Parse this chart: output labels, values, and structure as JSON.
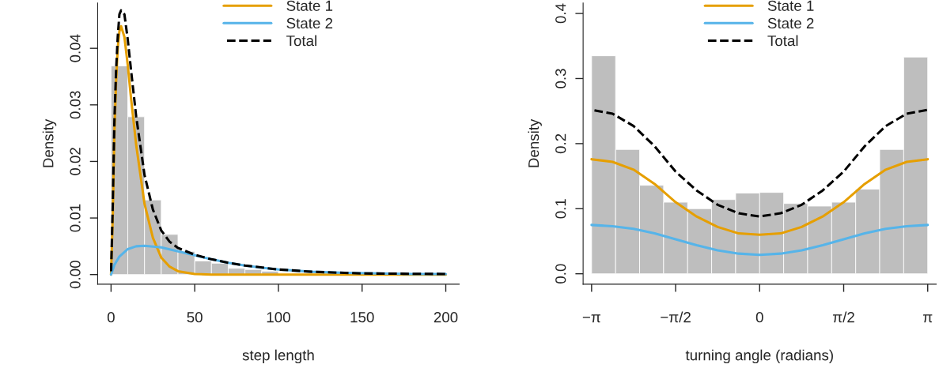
{
  "chart_data": [
    {
      "type": "histogram",
      "xlabel": "step length",
      "ylabel": "Density",
      "color": "#bebebe",
      "bins": [
        0,
        10,
        20,
        30,
        40,
        50,
        60,
        70,
        80,
        90,
        100,
        110,
        120,
        130,
        140,
        150,
        160,
        170,
        180,
        190,
        200
      ],
      "values": [
        0.0369,
        0.0279,
        0.0132,
        0.0071,
        0.0041,
        0.0024,
        0.002,
        0.0011,
        0.0009,
        0.0006,
        null,
        null,
        null,
        null,
        null,
        null,
        null,
        null,
        null,
        null
      ],
      "xlim": [
        -8,
        208
      ],
      "ylim": [
        -0.0017,
        0.048
      ],
      "xticks": [
        0,
        50,
        100,
        150,
        200
      ],
      "yticks": [
        {
          "value": 0,
          "label": "0.00"
        },
        {
          "value": 0.01,
          "label": "0.01"
        },
        {
          "value": 0.02,
          "label": "0.02"
        },
        {
          "value": 0.03,
          "label": "0.03"
        },
        {
          "value": 0.04,
          "label": "0.04"
        }
      ],
      "legend": "top",
      "grid": false,
      "series": [
        {
          "type": "line",
          "name": "State 1",
          "color": "#e69f00",
          "line_style": "solid",
          "x": [
            0,
            1,
            2,
            3,
            4,
            5,
            6,
            8,
            10,
            12,
            15,
            20,
            25,
            30,
            35,
            40,
            50,
            60,
            80,
            120,
            200
          ],
          "values": [
            0,
            0.01,
            0.025,
            0.034,
            0.04,
            0.043,
            0.0439,
            0.042,
            0.037,
            0.031,
            0.023,
            0.0125,
            0.0065,
            0.003,
            0.0014,
            0.0006,
            0.0001,
            0,
            0,
            0,
            0
          ]
        },
        {
          "type": "line",
          "name": "State 2",
          "color": "#56b4e9",
          "line_style": "solid",
          "x": [
            0,
            2,
            5,
            10,
            15,
            20,
            30,
            40,
            50,
            60,
            70,
            80,
            90,
            100,
            120,
            140,
            160,
            180,
            200
          ],
          "values": [
            0,
            0.0017,
            0.0032,
            0.0045,
            0.005,
            0.0051,
            0.0048,
            0.0041,
            0.0034,
            0.0027,
            0.0021,
            0.0016,
            0.0012,
            0.0009,
            0.0005,
            0.0003,
            0.0002,
            0.0001,
            0.0001
          ]
        },
        {
          "type": "line",
          "name": "Total",
          "color": "#000000",
          "line_style": "dashed",
          "x": [
            0,
            1,
            2,
            3,
            4,
            5,
            6,
            8,
            10,
            12,
            15,
            20,
            25,
            30,
            35,
            40,
            50,
            60,
            70,
            80,
            100,
            120,
            150,
            200
          ],
          "values": [
            0,
            0.012,
            0.027,
            0.036,
            0.042,
            0.046,
            0.0467,
            0.046,
            0.0415,
            0.036,
            0.028,
            0.0176,
            0.0115,
            0.0078,
            0.0058,
            0.0047,
            0.0035,
            0.0027,
            0.0021,
            0.0016,
            0.0009,
            0.0005,
            0.0002,
            0.0001
          ]
        }
      ]
    },
    {
      "type": "histogram",
      "xlabel": "turning angle (radians)",
      "ylabel": "Density",
      "color": "#bebebe",
      "bins": [
        -3.1416,
        -2.6928,
        -2.244,
        -1.7952,
        -1.3464,
        -0.8976,
        -0.4488,
        0,
        0.4488,
        0.8976,
        1.3464,
        1.7952,
        2.244,
        2.6928,
        3.1416
      ],
      "values": [
        0.335,
        0.191,
        0.136,
        0.11,
        0.1,
        0.114,
        0.124,
        0.125,
        0.108,
        0.104,
        0.11,
        0.13,
        0.191,
        0.333
      ],
      "xlim": [
        -3.3,
        3.3
      ],
      "ylim": [
        -0.016,
        0.416
      ],
      "xticks": [
        {
          "value": -3.1416,
          "label": "−π"
        },
        {
          "value": -1.5708,
          "label": "−π/2"
        },
        0,
        {
          "value": 1.5708,
          "label": "π/2"
        },
        {
          "value": 3.1416,
          "label": "π"
        }
      ],
      "yticks": [
        {
          "value": 0,
          "label": "0.0"
        },
        {
          "value": 0.1,
          "label": "0.1"
        },
        {
          "value": 0.2,
          "label": "0.2"
        },
        {
          "value": 0.3,
          "label": "0.3"
        },
        {
          "value": 0.4,
          "label": "0.4"
        }
      ],
      "legend": "top",
      "grid": false,
      "series": [
        {
          "type": "line",
          "name": "State 1",
          "color": "#e69f00",
          "line_style": "solid",
          "x": [
            -3.1416,
            -2.7489,
            -2.3562,
            -1.9635,
            -1.5708,
            -1.1781,
            -0.7854,
            -0.3927,
            0,
            0.3927,
            0.7854,
            1.1781,
            1.5708,
            1.9635,
            2.3562,
            2.7489,
            3.1416
          ],
          "values": [
            0.176,
            0.172,
            0.16,
            0.138,
            0.11,
            0.088,
            0.072,
            0.062,
            0.06,
            0.062,
            0.072,
            0.088,
            0.11,
            0.138,
            0.16,
            0.172,
            0.176
          ]
        },
        {
          "type": "line",
          "name": "State 2",
          "color": "#56b4e9",
          "line_style": "solid",
          "x": [
            -3.1416,
            -2.7489,
            -2.3562,
            -1.9635,
            -1.5708,
            -1.1781,
            -0.7854,
            -0.3927,
            0,
            0.3927,
            0.7854,
            1.1781,
            1.5708,
            1.9635,
            2.3562,
            2.7489,
            3.1416
          ],
          "values": [
            0.075,
            0.073,
            0.069,
            0.062,
            0.053,
            0.044,
            0.036,
            0.031,
            0.029,
            0.031,
            0.036,
            0.044,
            0.053,
            0.062,
            0.069,
            0.073,
            0.075
          ]
        },
        {
          "type": "line",
          "name": "Total",
          "color": "#000000",
          "line_style": "dashed",
          "x": [
            -3.1416,
            -2.7489,
            -2.3562,
            -1.9635,
            -1.5708,
            -1.1781,
            -0.7854,
            -0.3927,
            0,
            0.3927,
            0.7854,
            1.1781,
            1.5708,
            1.9635,
            2.3562,
            2.7489,
            3.1416
          ],
          "values": [
            0.252,
            0.246,
            0.227,
            0.196,
            0.157,
            0.128,
            0.106,
            0.093,
            0.088,
            0.093,
            0.106,
            0.128,
            0.157,
            0.196,
            0.227,
            0.246,
            0.252
          ]
        }
      ]
    }
  ]
}
